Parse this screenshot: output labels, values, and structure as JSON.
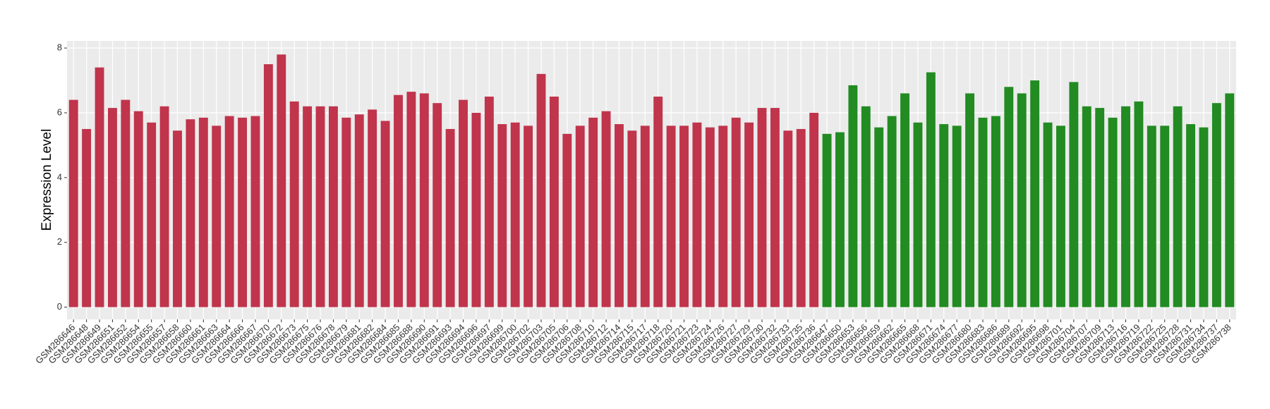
{
  "chart_data": {
    "type": "bar",
    "y_label": "Expression Level",
    "categories": [
      "GSM286646",
      "GSM286648",
      "GSM286649",
      "GSM286651",
      "GSM286652",
      "GSM286654",
      "GSM286655",
      "GSM286657",
      "GSM286658",
      "GSM286660",
      "GSM286661",
      "GSM286663",
      "GSM286664",
      "GSM286666",
      "GSM286667",
      "GSM286670",
      "GSM286672",
      "GSM286673",
      "GSM286675",
      "GSM286676",
      "GSM286678",
      "GSM286679",
      "GSM286681",
      "GSM286682",
      "GSM286684",
      "GSM286685",
      "GSM286688",
      "GSM286690",
      "GSM286691",
      "GSM286693",
      "GSM286694",
      "GSM286696",
      "GSM286697",
      "GSM286699",
      "GSM286700",
      "GSM286702",
      "GSM286703",
      "GSM286705",
      "GSM286706",
      "GSM286708",
      "GSM286710",
      "GSM286712",
      "GSM286714",
      "GSM286715",
      "GSM286717",
      "GSM286718",
      "GSM286720",
      "GSM286721",
      "GSM286723",
      "GSM286724",
      "GSM286726",
      "GSM286727",
      "GSM286729",
      "GSM286730",
      "GSM286732",
      "GSM286733",
      "GSM286735",
      "GSM286736",
      "GSM286647",
      "GSM286650",
      "GSM286653",
      "GSM286656",
      "GSM286659",
      "GSM286662",
      "GSM286665",
      "GSM286668",
      "GSM286671",
      "GSM286674",
      "GSM286677",
      "GSM286680",
      "GSM286683",
      "GSM286686",
      "GSM286689",
      "GSM286692",
      "GSM286695",
      "GSM286698",
      "GSM286701",
      "GSM286704",
      "GSM286707",
      "GSM286709",
      "GSM286713",
      "GSM286716",
      "GSM286719",
      "GSM286722",
      "GSM286725",
      "GSM286728",
      "GSM286731",
      "GSM286734",
      "GSM286737",
      "GSM286738"
    ],
    "series": [
      {
        "color": "#c0344c",
        "values": [
          6.4,
          5.5,
          7.4,
          6.15,
          6.4,
          6.05,
          5.7,
          6.2,
          5.45,
          5.8,
          5.85,
          5.6,
          5.9,
          5.85,
          5.9,
          7.5,
          7.8,
          6.35,
          6.2,
          6.2,
          6.2,
          5.85,
          5.95,
          6.1,
          5.75,
          6.55,
          6.65,
          6.6,
          6.3,
          5.5,
          6.4,
          6.0,
          6.5,
          5.65,
          5.7,
          5.6,
          7.2,
          6.5,
          5.35,
          5.6,
          5.85,
          6.05,
          5.65,
          5.45,
          5.6,
          6.5,
          5.6,
          5.6,
          5.7,
          5.55,
          5.6,
          5.85,
          5.7,
          6.15,
          6.15,
          5.45,
          5.5,
          6.0,
          null,
          null,
          null,
          null,
          null,
          null,
          null,
          null,
          null,
          null,
          null,
          null,
          null,
          null,
          null,
          null,
          null,
          null,
          null,
          null,
          null,
          null,
          null,
          null,
          null,
          null,
          null,
          null,
          null,
          null,
          null,
          null
        ]
      },
      {
        "color": "#228b22",
        "values": [
          null,
          null,
          null,
          null,
          null,
          null,
          null,
          null,
          null,
          null,
          null,
          null,
          null,
          null,
          null,
          null,
          null,
          null,
          null,
          null,
          null,
          null,
          null,
          null,
          null,
          null,
          null,
          null,
          null,
          null,
          null,
          null,
          null,
          null,
          null,
          null,
          null,
          null,
          null,
          null,
          null,
          null,
          null,
          null,
          null,
          null,
          null,
          null,
          null,
          null,
          null,
          null,
          null,
          null,
          null,
          null,
          null,
          null,
          5.35,
          5.4,
          6.85,
          6.2,
          5.55,
          5.9,
          6.6,
          5.7,
          7.25,
          5.65,
          5.6,
          6.6,
          5.85,
          5.9,
          6.8,
          6.6,
          7.0,
          5.7,
          5.6,
          6.95,
          6.2,
          6.15,
          5.85,
          6.2,
          6.35,
          5.6,
          5.6,
          6.2,
          5.65,
          5.55,
          6.3,
          6.6
        ]
      }
    ],
    "ylim": [
      -0.38,
      8.22
    ],
    "yticks": [
      0,
      2,
      4,
      6,
      8
    ],
    "grid": true
  }
}
